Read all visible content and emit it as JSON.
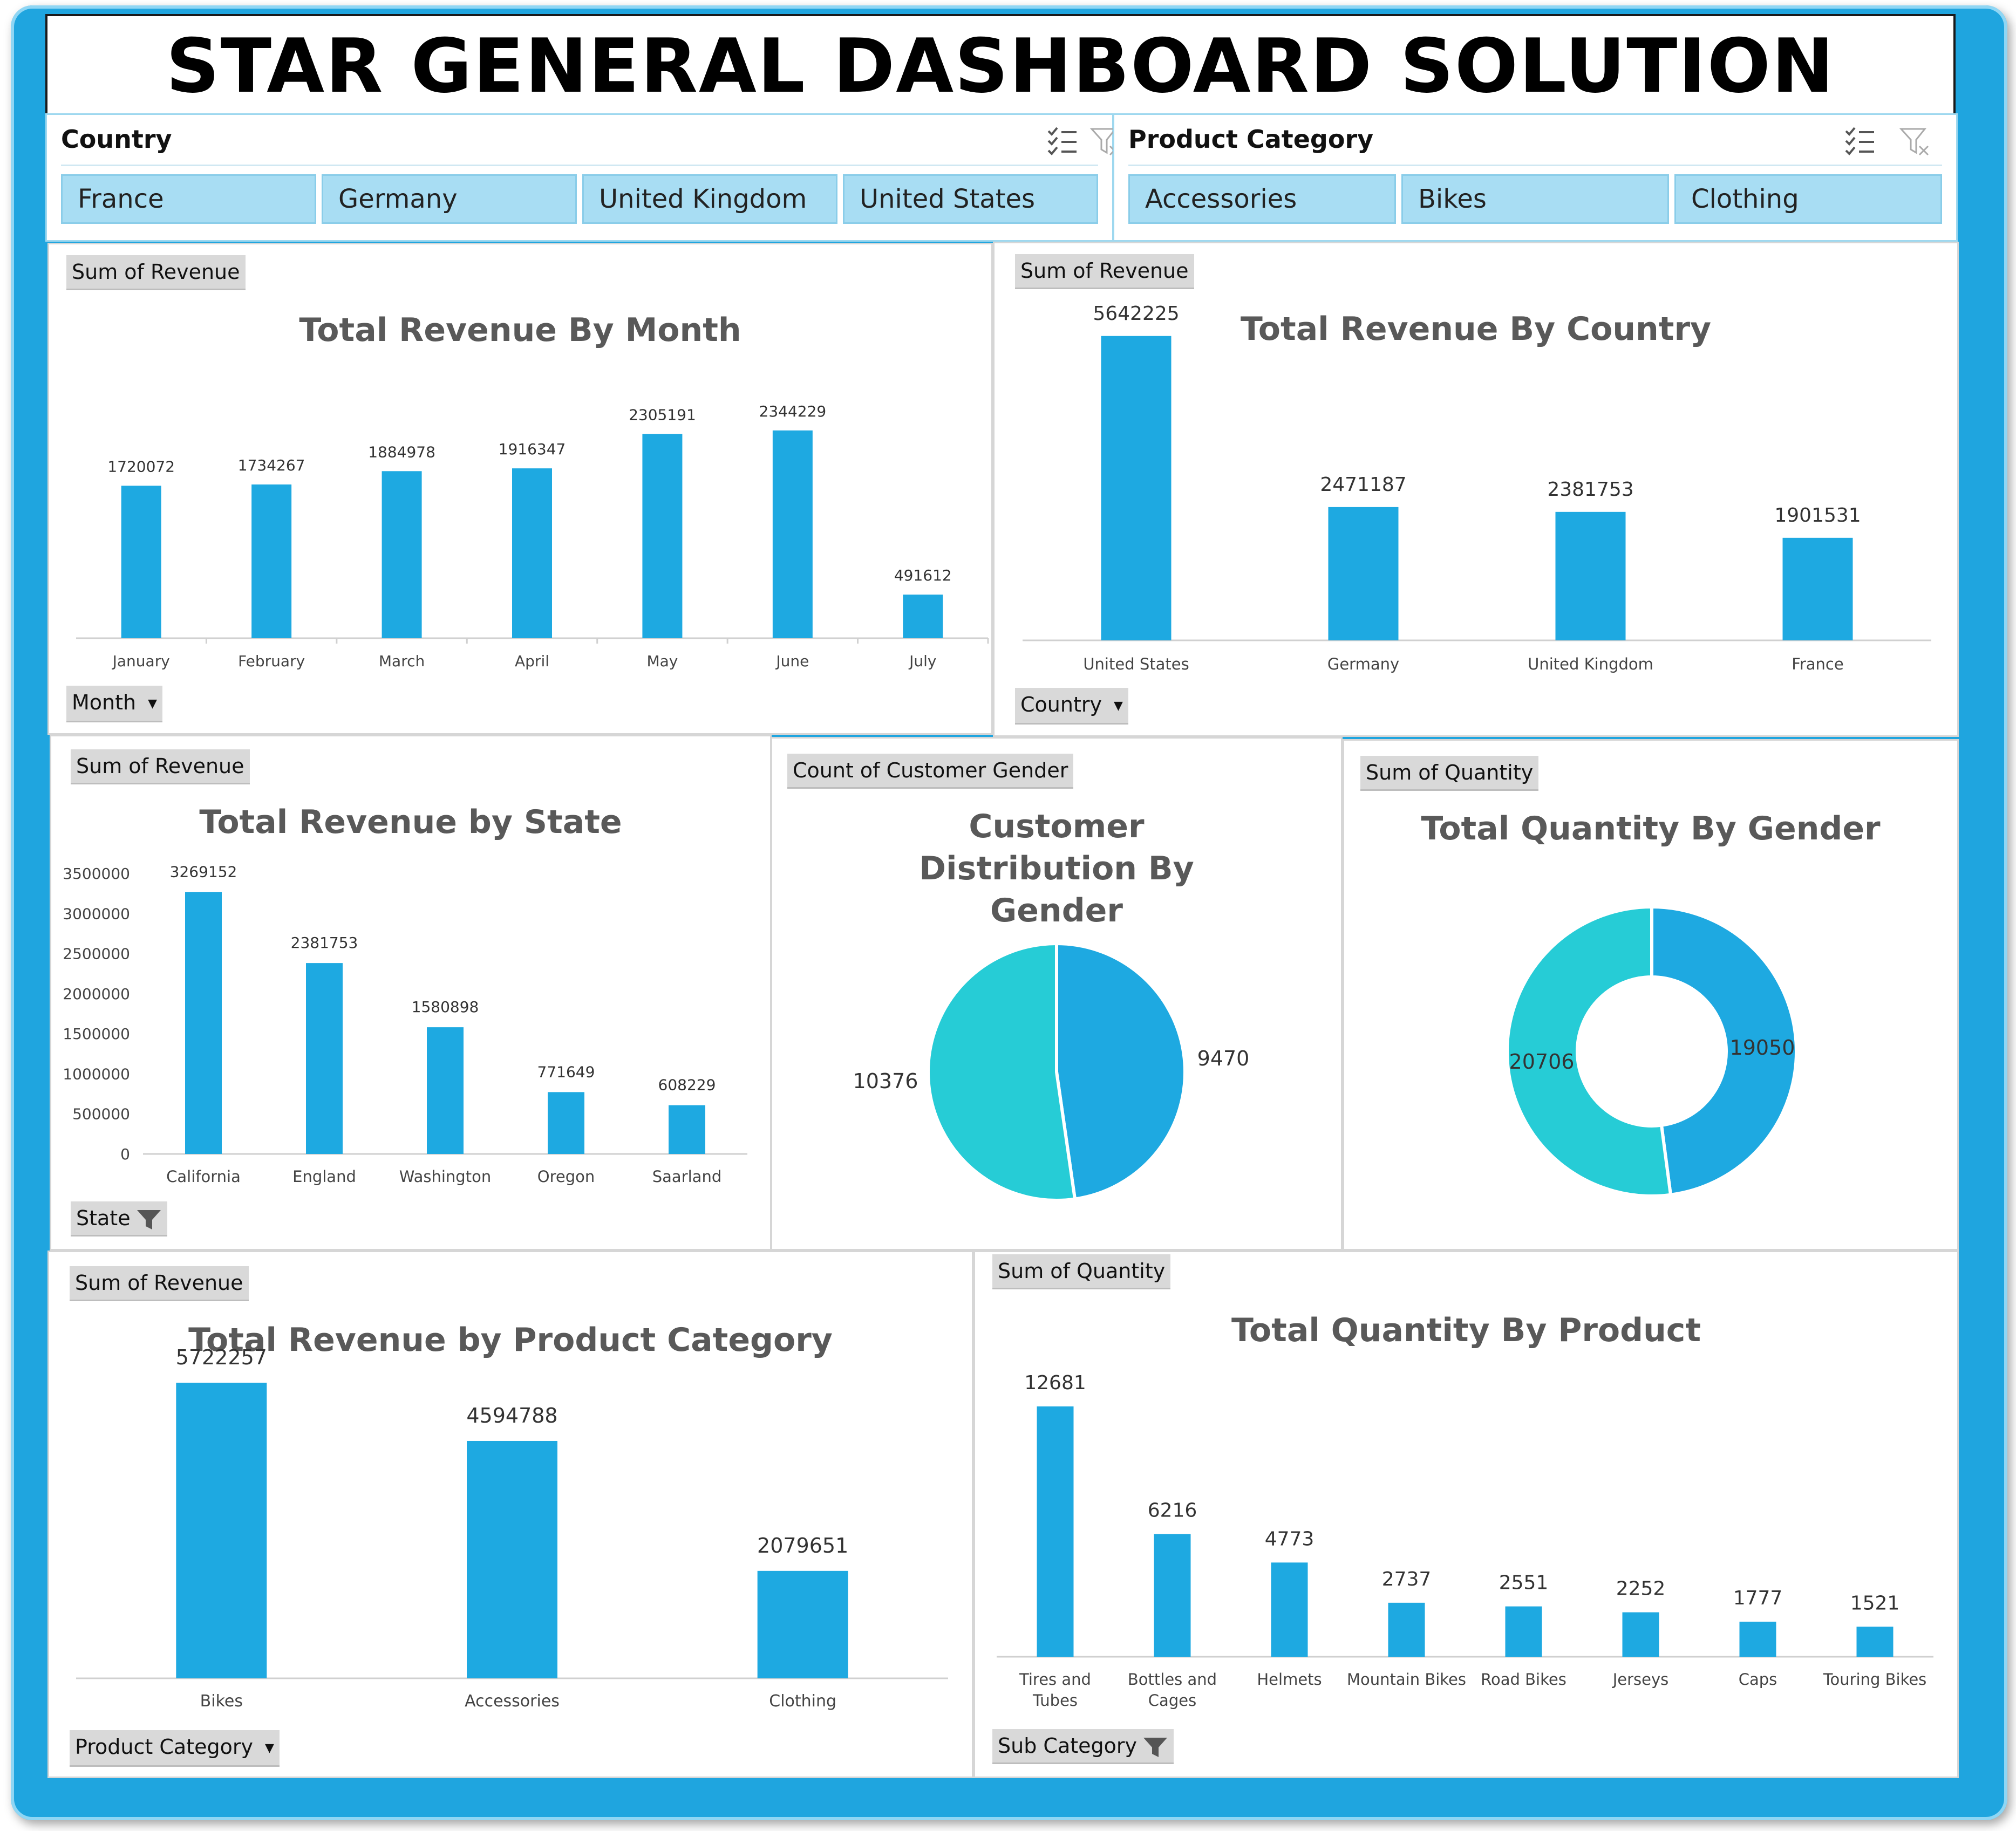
{
  "title": "STAR GENERAL DASHBOARD SOLUTION",
  "slicers": {
    "country": {
      "label": "Country",
      "items": [
        "France",
        "Germany",
        "United Kingdom",
        "United States"
      ]
    },
    "product_category": {
      "label": "Product Category",
      "items": [
        "Accessories",
        "Bikes",
        "Clothing"
      ]
    }
  },
  "colors": {
    "bar": "#1ea9e1",
    "teal": "#26ccd6",
    "frame": "#1fa5df",
    "slicer_item": "#a8ddf3"
  },
  "panels": {
    "month": {
      "tag": "Sum of Revenue",
      "field": "Month"
    },
    "country": {
      "tag": "Sum of Revenue",
      "field": "Country"
    },
    "state": {
      "tag": "Sum of Revenue",
      "field": "State"
    },
    "gender_count": {
      "tag": "Count of Customer Gender"
    },
    "gender_qty": {
      "tag": "Sum of Quantity"
    },
    "category": {
      "tag": "Sum of Revenue",
      "field": "Product Category"
    },
    "product": {
      "tag": "Sum of Quantity",
      "field": "Sub Category"
    }
  },
  "chart_data": [
    {
      "id": "month",
      "type": "bar",
      "title": "Total Revenue By Month",
      "categories": [
        "January",
        "February",
        "March",
        "April",
        "May",
        "June",
        "July"
      ],
      "values": [
        1720072,
        1734267,
        1884978,
        1916347,
        2305191,
        2344229,
        491612
      ]
    },
    {
      "id": "country",
      "type": "bar",
      "title": "Total Revenue By Country",
      "categories": [
        "United States",
        "Germany",
        "United Kingdom",
        "France"
      ],
      "values": [
        5642225,
        2471187,
        2381753,
        1901531
      ]
    },
    {
      "id": "state",
      "type": "bar",
      "title": "Total Revenue by State",
      "categories": [
        "California",
        "England",
        "Washington",
        "Oregon",
        "Saarland"
      ],
      "values": [
        3269152,
        2381753,
        1580898,
        771649,
        608229
      ],
      "yticks": [
        0,
        500000,
        1000000,
        1500000,
        2000000,
        2500000,
        3000000,
        3500000
      ],
      "ylim": [
        0,
        3500000
      ]
    },
    {
      "id": "gender_count",
      "type": "pie",
      "title": "Customer Distribution By Gender",
      "values": [
        9470,
        10376
      ]
    },
    {
      "id": "gender_qty",
      "type": "pie",
      "title": "Total Quantity By Gender",
      "values": [
        19050,
        20706
      ]
    },
    {
      "id": "category",
      "type": "bar",
      "title": "Total Revenue by Product Category",
      "categories": [
        "Bikes",
        "Accessories",
        "Clothing"
      ],
      "values": [
        5722257,
        4594788,
        2079651
      ]
    },
    {
      "id": "product",
      "type": "bar",
      "title": "Total Quantity By Product",
      "categories": [
        "Tires and Tubes",
        "Bottles and Cages",
        "Helmets",
        "Mountain Bikes",
        "Road Bikes",
        "Jerseys",
        "Caps",
        "Touring Bikes"
      ],
      "values": [
        12681,
        6216,
        4773,
        2737,
        2551,
        2252,
        1777,
        1521
      ]
    }
  ]
}
